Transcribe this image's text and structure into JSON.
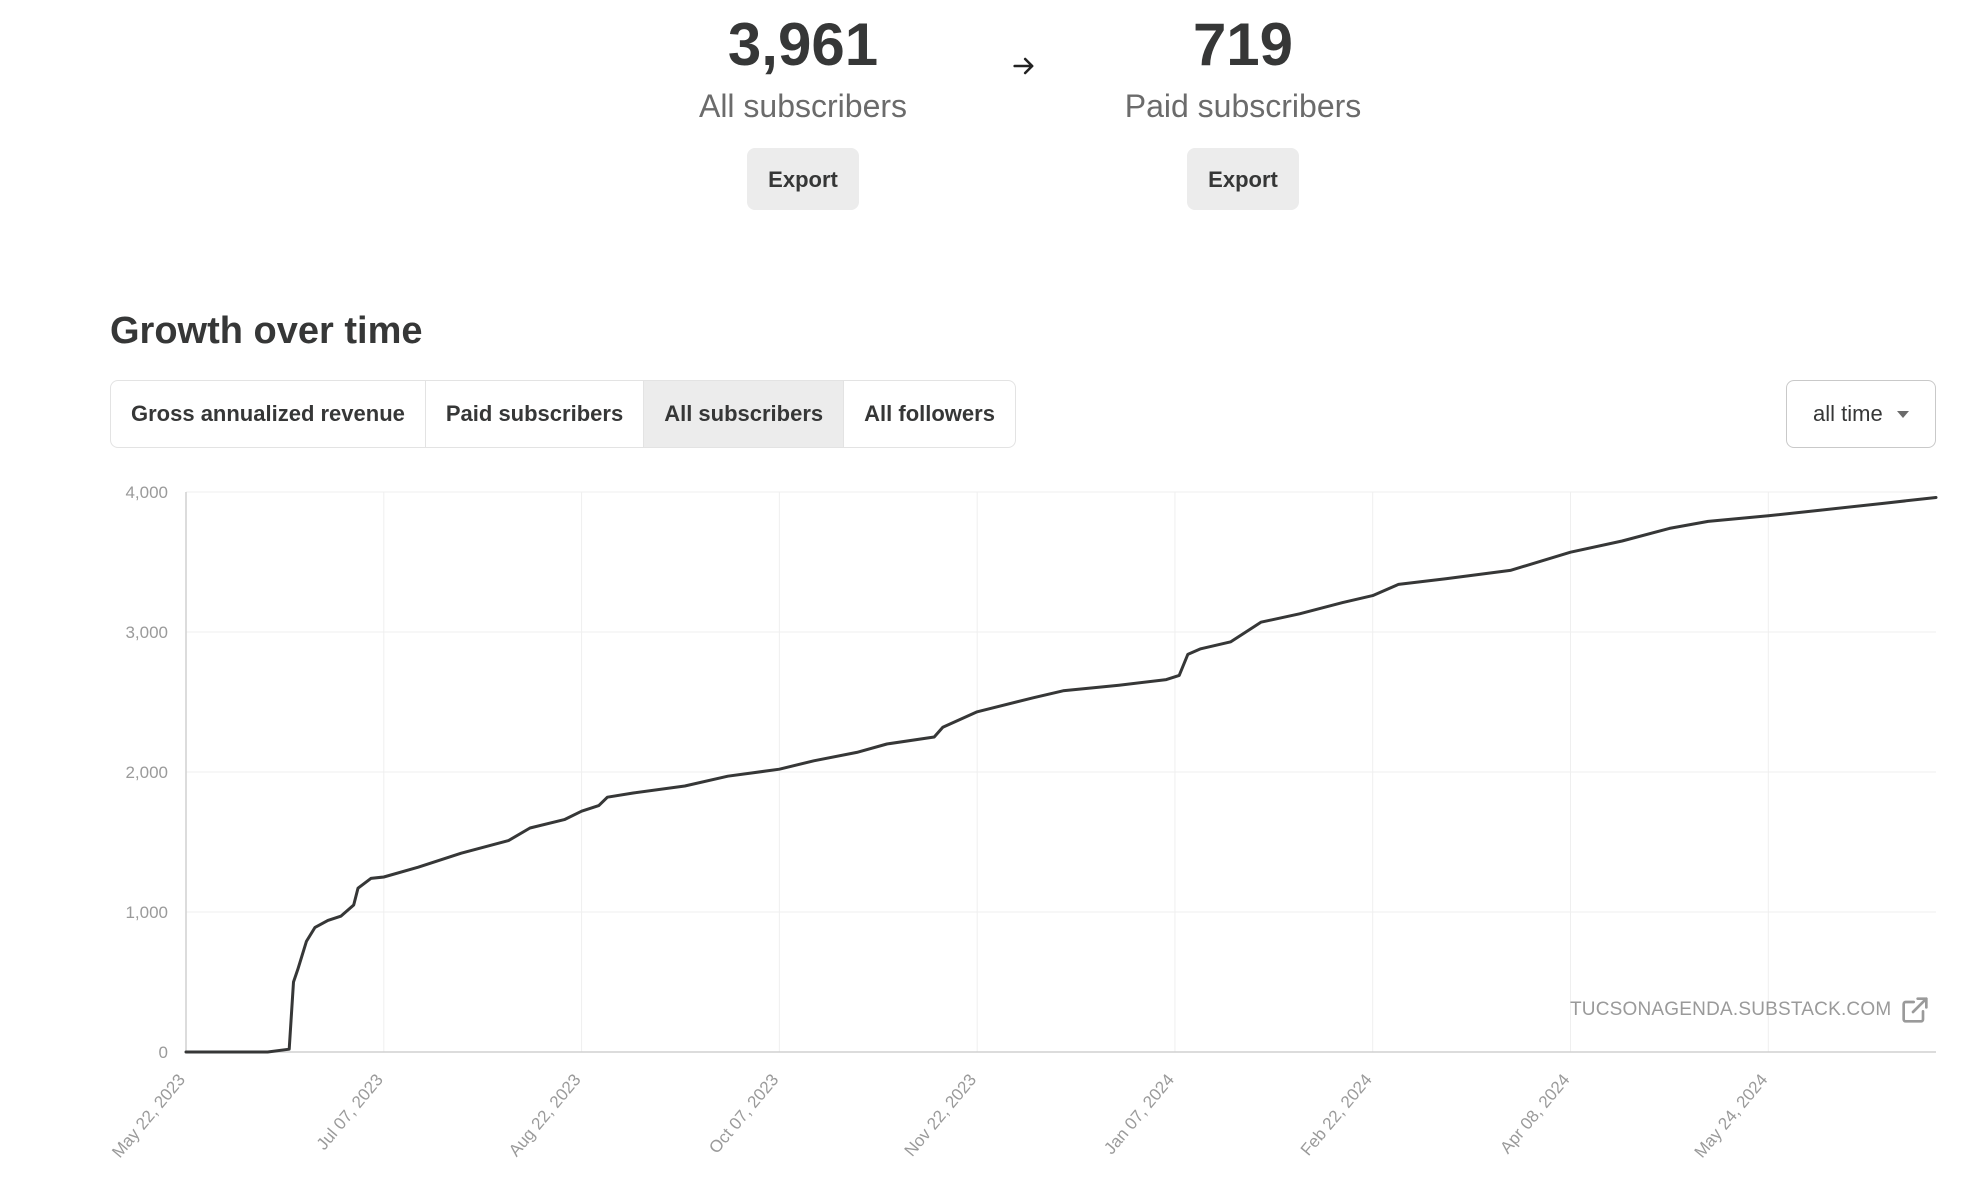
{
  "stats": {
    "all": {
      "value": "3,961",
      "label": "All subscribers",
      "export_label": "Export"
    },
    "paid": {
      "value": "719",
      "label": "Paid subscribers",
      "export_label": "Export"
    }
  },
  "section": {
    "title": "Growth over time"
  },
  "tabs": [
    {
      "label": "Gross annualized revenue",
      "active": false
    },
    {
      "label": "Paid subscribers",
      "active": false
    },
    {
      "label": "All subscribers",
      "active": true
    },
    {
      "label": "All followers",
      "active": false
    }
  ],
  "range": {
    "selected": "all time"
  },
  "watermark": {
    "text": "TUCSONAGENDA.SUBSTACK.COM"
  },
  "icons": {
    "arrow": "arrow-right-icon",
    "caret": "caret-down-icon",
    "external": "external-link-icon"
  },
  "colors": {
    "line": "#363737",
    "grid": "#efefef",
    "axis": "#d0d0d0",
    "tick": "#9a9a9a"
  },
  "chart_data": {
    "type": "line",
    "title": "",
    "xlabel": "",
    "ylabel": "",
    "ylim": [
      0,
      4000
    ],
    "yticks": [
      0,
      1000,
      2000,
      3000,
      4000
    ],
    "ytick_labels": [
      "0",
      "1,000",
      "2,000",
      "3,000",
      "4,000"
    ],
    "xtick_dates": [
      "2023-05-22",
      "2023-07-07",
      "2023-08-22",
      "2023-10-07",
      "2023-11-22",
      "2024-01-07",
      "2024-02-22",
      "2024-04-08",
      "2024-05-24"
    ],
    "xtick_labels": [
      "May 22, 2023",
      "Jul 07, 2023",
      "Aug 22, 2023",
      "Oct 07, 2023",
      "Nov 22, 2023",
      "Jan 07, 2024",
      "Feb 22, 2024",
      "Apr 08, 2024",
      "May 24, 2024"
    ],
    "xlim": [
      "2023-05-22",
      "2024-07-02"
    ],
    "grid": true,
    "series": [
      {
        "name": "",
        "points": [
          [
            "2023-05-22",
            0
          ],
          [
            "2023-06-10",
            0
          ],
          [
            "2023-06-15",
            20
          ],
          [
            "2023-06-16",
            500
          ],
          [
            "2023-06-17",
            590
          ],
          [
            "2023-06-19",
            790
          ],
          [
            "2023-06-21",
            890
          ],
          [
            "2023-06-24",
            940
          ],
          [
            "2023-06-27",
            970
          ],
          [
            "2023-06-30",
            1050
          ],
          [
            "2023-07-01",
            1170
          ],
          [
            "2023-07-04",
            1240
          ],
          [
            "2023-07-07",
            1250
          ],
          [
            "2023-07-15",
            1320
          ],
          [
            "2023-07-25",
            1420
          ],
          [
            "2023-08-05",
            1510
          ],
          [
            "2023-08-10",
            1600
          ],
          [
            "2023-08-18",
            1660
          ],
          [
            "2023-08-22",
            1720
          ],
          [
            "2023-08-26",
            1760
          ],
          [
            "2023-08-28",
            1820
          ],
          [
            "2023-09-03",
            1850
          ],
          [
            "2023-09-15",
            1900
          ],
          [
            "2023-09-25",
            1970
          ],
          [
            "2023-10-07",
            2020
          ],
          [
            "2023-10-15",
            2080
          ],
          [
            "2023-10-25",
            2140
          ],
          [
            "2023-11-01",
            2200
          ],
          [
            "2023-11-12",
            2250
          ],
          [
            "2023-11-14",
            2320
          ],
          [
            "2023-11-22",
            2430
          ],
          [
            "2023-12-05",
            2530
          ],
          [
            "2023-12-12",
            2580
          ],
          [
            "2023-12-25",
            2620
          ],
          [
            "2024-01-05",
            2660
          ],
          [
            "2024-01-08",
            2690
          ],
          [
            "2024-01-10",
            2840
          ],
          [
            "2024-01-13",
            2880
          ],
          [
            "2024-01-20",
            2930
          ],
          [
            "2024-01-27",
            3070
          ],
          [
            "2024-02-05",
            3130
          ],
          [
            "2024-02-15",
            3210
          ],
          [
            "2024-02-22",
            3260
          ],
          [
            "2024-02-28",
            3340
          ],
          [
            "2024-03-10",
            3380
          ],
          [
            "2024-03-25",
            3440
          ],
          [
            "2024-04-08",
            3570
          ],
          [
            "2024-04-20",
            3650
          ],
          [
            "2024-05-01",
            3740
          ],
          [
            "2024-05-10",
            3790
          ],
          [
            "2024-05-24",
            3830
          ],
          [
            "2024-06-05",
            3870
          ],
          [
            "2024-06-20",
            3920
          ],
          [
            "2024-07-02",
            3961
          ]
        ]
      }
    ]
  }
}
